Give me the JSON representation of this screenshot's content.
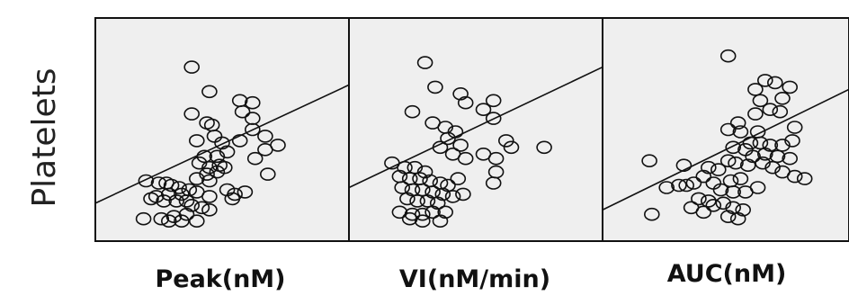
{
  "figure": {
    "y_label": "Platelets"
  },
  "chart_data": [
    {
      "type": "scatter",
      "xlabel": "Peak(nM)",
      "ylabel": "Platelets",
      "trendline": {
        "y_at_left": 0.17,
        "y_at_right": 0.7
      },
      "points": [
        [
          0.38,
          0.78
        ],
        [
          0.45,
          0.67
        ],
        [
          0.57,
          0.63
        ],
        [
          0.62,
          0.62
        ],
        [
          0.58,
          0.58
        ],
        [
          0.62,
          0.55
        ],
        [
          0.62,
          0.5
        ],
        [
          0.38,
          0.57
        ],
        [
          0.44,
          0.53
        ],
        [
          0.46,
          0.52
        ],
        [
          0.4,
          0.45
        ],
        [
          0.47,
          0.47
        ],
        [
          0.5,
          0.44
        ],
        [
          0.52,
          0.4
        ],
        [
          0.48,
          0.38
        ],
        [
          0.43,
          0.38
        ],
        [
          0.57,
          0.45
        ],
        [
          0.67,
          0.47
        ],
        [
          0.72,
          0.43
        ],
        [
          0.67,
          0.41
        ],
        [
          0.63,
          0.37
        ],
        [
          0.68,
          0.3
        ],
        [
          0.41,
          0.35
        ],
        [
          0.45,
          0.33
        ],
        [
          0.49,
          0.34
        ],
        [
          0.51,
          0.33
        ],
        [
          0.44,
          0.3
        ],
        [
          0.48,
          0.31
        ],
        [
          0.4,
          0.28
        ],
        [
          0.45,
          0.27
        ],
        [
          0.2,
          0.27
        ],
        [
          0.25,
          0.26
        ],
        [
          0.28,
          0.26
        ],
        [
          0.3,
          0.25
        ],
        [
          0.33,
          0.24
        ],
        [
          0.37,
          0.23
        ],
        [
          0.4,
          0.22
        ],
        [
          0.34,
          0.21
        ],
        [
          0.29,
          0.21
        ],
        [
          0.24,
          0.2
        ],
        [
          0.22,
          0.19
        ],
        [
          0.27,
          0.18
        ],
        [
          0.32,
          0.18
        ],
        [
          0.36,
          0.18
        ],
        [
          0.38,
          0.16
        ],
        [
          0.42,
          0.15
        ],
        [
          0.45,
          0.14
        ],
        [
          0.36,
          0.12
        ],
        [
          0.31,
          0.11
        ],
        [
          0.26,
          0.1
        ],
        [
          0.19,
          0.1
        ],
        [
          0.29,
          0.09
        ],
        [
          0.34,
          0.09
        ],
        [
          0.4,
          0.09
        ],
        [
          0.45,
          0.2
        ],
        [
          0.52,
          0.23
        ],
        [
          0.55,
          0.21
        ],
        [
          0.59,
          0.22
        ],
        [
          0.54,
          0.19
        ]
      ]
    },
    {
      "type": "scatter",
      "xlabel": "VI(nM/min)",
      "ylabel": "Platelets",
      "trendline": {
        "y_at_left": 0.24,
        "y_at_right": 0.78
      },
      "points": [
        [
          0.3,
          0.8
        ],
        [
          0.34,
          0.69
        ],
        [
          0.44,
          0.66
        ],
        [
          0.46,
          0.62
        ],
        [
          0.57,
          0.63
        ],
        [
          0.53,
          0.59
        ],
        [
          0.57,
          0.55
        ],
        [
          0.25,
          0.58
        ],
        [
          0.33,
          0.53
        ],
        [
          0.38,
          0.51
        ],
        [
          0.42,
          0.49
        ],
        [
          0.39,
          0.46
        ],
        [
          0.44,
          0.43
        ],
        [
          0.36,
          0.42
        ],
        [
          0.41,
          0.39
        ],
        [
          0.46,
          0.37
        ],
        [
          0.53,
          0.39
        ],
        [
          0.62,
          0.45
        ],
        [
          0.64,
          0.42
        ],
        [
          0.77,
          0.42
        ],
        [
          0.58,
          0.37
        ],
        [
          0.58,
          0.31
        ],
        [
          0.57,
          0.26
        ],
        [
          0.17,
          0.35
        ],
        [
          0.22,
          0.33
        ],
        [
          0.26,
          0.33
        ],
        [
          0.3,
          0.31
        ],
        [
          0.2,
          0.29
        ],
        [
          0.24,
          0.28
        ],
        [
          0.28,
          0.28
        ],
        [
          0.32,
          0.27
        ],
        [
          0.36,
          0.26
        ],
        [
          0.39,
          0.25
        ],
        [
          0.43,
          0.28
        ],
        [
          0.21,
          0.24
        ],
        [
          0.25,
          0.23
        ],
        [
          0.29,
          0.23
        ],
        [
          0.33,
          0.22
        ],
        [
          0.37,
          0.21
        ],
        [
          0.41,
          0.2
        ],
        [
          0.45,
          0.21
        ],
        [
          0.23,
          0.19
        ],
        [
          0.27,
          0.18
        ],
        [
          0.31,
          0.18
        ],
        [
          0.35,
          0.17
        ],
        [
          0.2,
          0.13
        ],
        [
          0.25,
          0.12
        ],
        [
          0.29,
          0.12
        ],
        [
          0.33,
          0.13
        ],
        [
          0.38,
          0.13
        ],
        [
          0.24,
          0.1
        ],
        [
          0.29,
          0.09
        ],
        [
          0.36,
          0.09
        ]
      ]
    },
    {
      "type": "scatter",
      "xlabel": "AUC(nM)",
      "ylabel": "Platelets",
      "trendline": {
        "y_at_left": 0.14,
        "y_at_right": 0.68
      },
      "points": [
        [
          0.51,
          0.83
        ],
        [
          0.62,
          0.68
        ],
        [
          0.66,
          0.72
        ],
        [
          0.7,
          0.71
        ],
        [
          0.76,
          0.69
        ],
        [
          0.64,
          0.63
        ],
        [
          0.73,
          0.64
        ],
        [
          0.62,
          0.57
        ],
        [
          0.68,
          0.59
        ],
        [
          0.72,
          0.58
        ],
        [
          0.55,
          0.53
        ],
        [
          0.51,
          0.5
        ],
        [
          0.56,
          0.49
        ],
        [
          0.63,
          0.49
        ],
        [
          0.78,
          0.51
        ],
        [
          0.6,
          0.44
        ],
        [
          0.64,
          0.44
        ],
        [
          0.68,
          0.43
        ],
        [
          0.73,
          0.43
        ],
        [
          0.77,
          0.45
        ],
        [
          0.53,
          0.42
        ],
        [
          0.58,
          0.41
        ],
        [
          0.61,
          0.38
        ],
        [
          0.66,
          0.39
        ],
        [
          0.71,
          0.38
        ],
        [
          0.76,
          0.37
        ],
        [
          0.51,
          0.36
        ],
        [
          0.54,
          0.35
        ],
        [
          0.59,
          0.34
        ],
        [
          0.65,
          0.35
        ],
        [
          0.69,
          0.33
        ],
        [
          0.73,
          0.31
        ],
        [
          0.78,
          0.29
        ],
        [
          0.82,
          0.28
        ],
        [
          0.19,
          0.36
        ],
        [
          0.33,
          0.34
        ],
        [
          0.43,
          0.33
        ],
        [
          0.47,
          0.32
        ],
        [
          0.41,
          0.29
        ],
        [
          0.45,
          0.26
        ],
        [
          0.37,
          0.26
        ],
        [
          0.34,
          0.25
        ],
        [
          0.31,
          0.25
        ],
        [
          0.26,
          0.24
        ],
        [
          0.52,
          0.27
        ],
        [
          0.56,
          0.28
        ],
        [
          0.48,
          0.23
        ],
        [
          0.53,
          0.22
        ],
        [
          0.58,
          0.22
        ],
        [
          0.63,
          0.24
        ],
        [
          0.39,
          0.19
        ],
        [
          0.43,
          0.18
        ],
        [
          0.36,
          0.15
        ],
        [
          0.41,
          0.13
        ],
        [
          0.2,
          0.12
        ],
        [
          0.53,
          0.15
        ],
        [
          0.57,
          0.14
        ],
        [
          0.51,
          0.11
        ],
        [
          0.55,
          0.1
        ],
        [
          0.45,
          0.16
        ],
        [
          0.49,
          0.17
        ]
      ]
    }
  ]
}
